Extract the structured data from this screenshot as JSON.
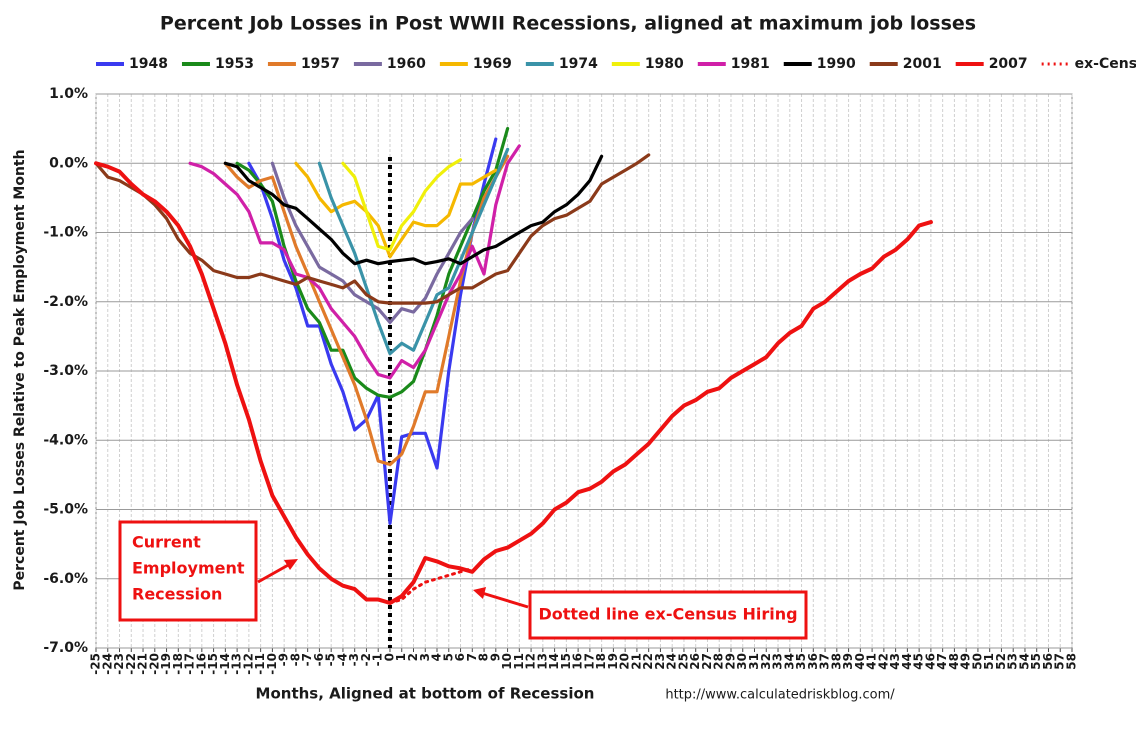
{
  "chart_data": {
    "type": "line",
    "title": "Percent Job Losses in Post WWII Recessions, aligned at maximum job losses",
    "x_label": "Months, Aligned at bottom of Recession",
    "y_label": "Percent Job Losses Relative to Peak Employment Month",
    "source": "http://www.calculatedriskblog.com/",
    "grid": true,
    "legend": "top",
    "xlim": [
      -25,
      58
    ],
    "ylim": [
      -7,
      1
    ],
    "xticks": [
      -25,
      -24,
      -23,
      -22,
      -21,
      -20,
      -19,
      -18,
      -17,
      -16,
      -15,
      -14,
      -13,
      -12,
      -11,
      -10,
      -9,
      -8,
      -7,
      -6,
      -5,
      -4,
      -3,
      -2,
      -1,
      0,
      1,
      2,
      3,
      4,
      5,
      6,
      7,
      8,
      9,
      10,
      11,
      12,
      13,
      14,
      15,
      16,
      17,
      18,
      19,
      20,
      21,
      22,
      23,
      24,
      25,
      26,
      27,
      28,
      29,
      30,
      31,
      32,
      33,
      34,
      35,
      36,
      37,
      38,
      39,
      40,
      41,
      42,
      43,
      44,
      45,
      46,
      47,
      48,
      49,
      50,
      51,
      52,
      53,
      54,
      55,
      56,
      57,
      58
    ],
    "yticks": [
      {
        "value": 1,
        "label": "1.0%"
      },
      {
        "value": 0,
        "label": "0.0%"
      },
      {
        "value": -1,
        "label": "-1.0%"
      },
      {
        "value": -2,
        "label": "-2.0%"
      },
      {
        "value": -3,
        "label": "-3.0%"
      },
      {
        "value": -4,
        "label": "-4.0%"
      },
      {
        "value": -5,
        "label": "-5.0%"
      },
      {
        "value": -6,
        "label": "-6.0%"
      },
      {
        "value": -7,
        "label": "-7.0%"
      }
    ],
    "series": [
      {
        "name": "1948",
        "color": "#3a3af0",
        "x": [
          -12,
          -11,
          -10,
          -9,
          -8,
          -7,
          -6,
          -5,
          -4,
          -3,
          -2,
          -1,
          0,
          1,
          2,
          3,
          4,
          5,
          6,
          7,
          8,
          9
        ],
        "values": [
          0,
          -0.3,
          -0.8,
          -1.4,
          -1.8,
          -2.35,
          -2.35,
          -2.9,
          -3.3,
          -3.85,
          -3.7,
          -3.35,
          -5.2,
          -3.95,
          -3.9,
          -3.9,
          -4.4,
          -3.0,
          -1.9,
          -1.0,
          -0.3,
          0.35
        ]
      },
      {
        "name": "1953",
        "color": "#1a8a1a",
        "x": [
          -13,
          -12,
          -11,
          -10,
          -9,
          -8,
          -7,
          -6,
          -5,
          -4,
          -3,
          -2,
          -1,
          0,
          1,
          2,
          3,
          4,
          5,
          6,
          7,
          8,
          9,
          10
        ],
        "values": [
          0,
          -0.1,
          -0.3,
          -0.55,
          -1.2,
          -1.7,
          -2.1,
          -2.3,
          -2.7,
          -2.7,
          -3.1,
          -3.25,
          -3.35,
          -3.38,
          -3.3,
          -3.15,
          -2.7,
          -2.2,
          -1.6,
          -1.2,
          -0.8,
          -0.4,
          -0.1,
          0.5
        ]
      },
      {
        "name": "1957",
        "color": "#e07a2a",
        "x": [
          -14,
          -13,
          -12,
          -11,
          -10,
          -9,
          -8,
          -7,
          -6,
          -5,
          -4,
          -3,
          -2,
          -1,
          0,
          1,
          2,
          3,
          4,
          5,
          6,
          7,
          8,
          9,
          10
        ],
        "values": [
          0,
          -0.2,
          -0.35,
          -0.25,
          -0.2,
          -0.7,
          -1.2,
          -1.6,
          -2.0,
          -2.4,
          -2.8,
          -3.2,
          -3.7,
          -4.3,
          -4.35,
          -4.2,
          -3.8,
          -3.3,
          -3.3,
          -2.5,
          -1.7,
          -1.0,
          -0.5,
          -0.2,
          0.1
        ]
      },
      {
        "name": "1960",
        "color": "#7a6aa0",
        "x": [
          -10,
          -9,
          -8,
          -7,
          -6,
          -5,
          -4,
          -3,
          -2,
          -1,
          0,
          1,
          2,
          3,
          4,
          5,
          6,
          7
        ],
        "values": [
          0,
          -0.5,
          -0.9,
          -1.2,
          -1.5,
          -1.6,
          -1.7,
          -1.9,
          -2.0,
          -2.1,
          -2.3,
          -2.1,
          -2.15,
          -1.95,
          -1.6,
          -1.3,
          -1.0,
          -0.8
        ]
      },
      {
        "name": "1969",
        "color": "#f5b800",
        "x": [
          -8,
          -7,
          -6,
          -5,
          -4,
          -3,
          -2,
          -1,
          0,
          1,
          2,
          3,
          4,
          5,
          6,
          7,
          8,
          9
        ],
        "values": [
          0,
          -0.2,
          -0.5,
          -0.7,
          -0.6,
          -0.55,
          -0.7,
          -0.9,
          -1.35,
          -1.1,
          -0.85,
          -0.9,
          -0.9,
          -0.75,
          -0.3,
          -0.3,
          -0.2,
          -0.1
        ]
      },
      {
        "name": "1974",
        "color": "#3a93a8",
        "x": [
          -6,
          -5,
          -4,
          -3,
          -2,
          -1,
          0,
          1,
          2,
          3,
          4,
          5,
          6,
          7,
          8,
          9,
          10
        ],
        "values": [
          0,
          -0.5,
          -0.9,
          -1.3,
          -1.8,
          -2.3,
          -2.75,
          -2.6,
          -2.7,
          -2.3,
          -1.9,
          -1.8,
          -1.4,
          -1.0,
          -0.6,
          -0.2,
          0.2
        ]
      },
      {
        "name": "1980",
        "color": "#f0f00a",
        "x": [
          -4,
          -3,
          -2,
          -1,
          0,
          1,
          2,
          3,
          4,
          5,
          6
        ],
        "values": [
          0,
          -0.2,
          -0.7,
          -1.2,
          -1.25,
          -0.9,
          -0.7,
          -0.4,
          -0.2,
          -0.05,
          0.05
        ]
      },
      {
        "name": "1981",
        "color": "#d020a8",
        "x": [
          -17,
          -16,
          -15,
          -14,
          -13,
          -12,
          -11,
          -10,
          -9,
          -8,
          -7,
          -6,
          -5,
          -4,
          -3,
          -2,
          -1,
          0,
          1,
          2,
          3,
          4,
          5,
          6,
          7,
          8,
          9,
          10,
          11
        ],
        "values": [
          0,
          -0.05,
          -0.15,
          -0.3,
          -0.45,
          -0.7,
          -1.15,
          -1.15,
          -1.25,
          -1.6,
          -1.65,
          -1.8,
          -2.1,
          -2.3,
          -2.5,
          -2.8,
          -3.05,
          -3.1,
          -2.85,
          -2.95,
          -2.7,
          -2.3,
          -1.9,
          -1.6,
          -1.2,
          -1.6,
          -0.6,
          0.0,
          0.25
        ]
      },
      {
        "name": "1990",
        "color": "#000000",
        "x": [
          -14,
          -13,
          -12,
          -11,
          -10,
          -9,
          -8,
          -7,
          -6,
          -5,
          -4,
          -3,
          -2,
          -1,
          0,
          1,
          2,
          3,
          4,
          5,
          6,
          7,
          8,
          9,
          10,
          11,
          12,
          13,
          14,
          15,
          16,
          17,
          18
        ],
        "values": [
          0,
          -0.05,
          -0.25,
          -0.35,
          -0.45,
          -0.6,
          -0.65,
          -0.8,
          -0.95,
          -1.1,
          -1.3,
          -1.45,
          -1.4,
          -1.45,
          -1.42,
          -1.4,
          -1.38,
          -1.45,
          -1.42,
          -1.38,
          -1.45,
          -1.35,
          -1.25,
          -1.2,
          -1.1,
          -1.0,
          -0.9,
          -0.85,
          -0.7,
          -0.6,
          -0.45,
          -0.25,
          0.1
        ]
      },
      {
        "name": "2001",
        "color": "#8b3a1a",
        "x": [
          -25,
          -24,
          -23,
          -22,
          -21,
          -20,
          -19,
          -18,
          -17,
          -16,
          -15,
          -14,
          -13,
          -12,
          -11,
          -10,
          -9,
          -8,
          -7,
          -6,
          -5,
          -4,
          -3,
          -2,
          -1,
          0,
          1,
          2,
          3,
          4,
          5,
          6,
          7,
          8,
          9,
          10,
          11,
          12,
          13,
          14,
          15,
          16,
          17,
          18,
          19,
          20,
          21,
          22
        ],
        "values": [
          0,
          -0.2,
          -0.25,
          -0.35,
          -0.45,
          -0.6,
          -0.8,
          -1.1,
          -1.3,
          -1.4,
          -1.55,
          -1.6,
          -1.65,
          -1.65,
          -1.6,
          -1.65,
          -1.7,
          -1.75,
          -1.65,
          -1.7,
          -1.75,
          -1.8,
          -1.7,
          -1.9,
          -2.0,
          -2.02,
          -2.02,
          -2.02,
          -2.02,
          -2.0,
          -1.9,
          -1.8,
          -1.8,
          -1.7,
          -1.6,
          -1.55,
          -1.3,
          -1.05,
          -0.9,
          -0.8,
          -0.75,
          -0.65,
          -0.55,
          -0.3,
          -0.2,
          -0.1,
          0.0,
          0.12
        ]
      },
      {
        "name": "2007",
        "color": "#ee1111",
        "width": 4,
        "x": [
          -25,
          -24,
          -23,
          -22,
          -21,
          -20,
          -19,
          -18,
          -17,
          -16,
          -15,
          -14,
          -13,
          -12,
          -11,
          -10,
          -9,
          -8,
          -7,
          -6,
          -5,
          -4,
          -3,
          -2,
          -1,
          0,
          1,
          2,
          3,
          4,
          5,
          6,
          7,
          8,
          9,
          10,
          11,
          12,
          13,
          14,
          15,
          16,
          17,
          18,
          19,
          20,
          21,
          22,
          23,
          24,
          25,
          26,
          27,
          28,
          29,
          30,
          31,
          32,
          33,
          34,
          35,
          36,
          37,
          38,
          39,
          40,
          41,
          42,
          43,
          44,
          45,
          46
        ],
        "values": [
          0,
          -0.05,
          -0.12,
          -0.3,
          -0.45,
          -0.55,
          -0.7,
          -0.9,
          -1.2,
          -1.6,
          -2.1,
          -2.6,
          -3.2,
          -3.7,
          -4.3,
          -4.8,
          -5.1,
          -5.4,
          -5.65,
          -5.85,
          -6.0,
          -6.1,
          -6.15,
          -6.3,
          -6.3,
          -6.35,
          -6.25,
          -6.05,
          -5.7,
          -5.75,
          -5.82,
          -5.85,
          -5.9,
          -5.72,
          -5.6,
          -5.55,
          -5.45,
          -5.35,
          -5.2,
          -5.0,
          -4.9,
          -4.75,
          -4.7,
          -4.6,
          -4.45,
          -4.35,
          -4.2,
          -4.05,
          -3.85,
          -3.65,
          -3.5,
          -3.42,
          -3.3,
          -3.25,
          -3.1,
          -3.0,
          -2.9,
          -2.8,
          -2.6,
          -2.45,
          -2.35,
          -2.1,
          -2.0,
          -1.85,
          -1.7,
          -1.6,
          -1.52,
          -1.35,
          -1.25,
          -1.1,
          -0.9,
          -0.85
        ]
      },
      {
        "name": "ex-Census",
        "color": "#ee1111",
        "style": "dotted",
        "x": [
          0,
          1,
          2,
          3,
          4,
          5,
          6,
          7
        ],
        "values": [
          -6.35,
          -6.3,
          -6.15,
          -6.05,
          -6.0,
          -5.95,
          -5.9,
          -5.85
        ]
      }
    ],
    "annotations": [
      {
        "lines": [
          "Current",
          "Employment",
          "Recession"
        ]
      },
      {
        "lines": [
          "Dotted line ex-Census Hiring"
        ]
      }
    ]
  }
}
